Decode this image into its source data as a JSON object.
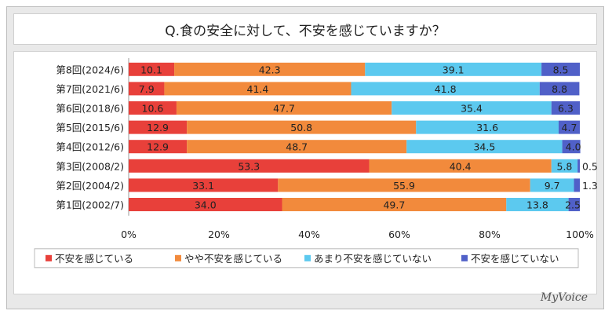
{
  "chart_data": {
    "type": "bar",
    "orientation": "horizontal",
    "stacked": true,
    "title": "Q.食の安全に対して、不安を感じていますか？",
    "categories": [
      "第8回(2024/6)",
      "第7回(2021/6)",
      "第6回(2018/6)",
      "第5回(2015/6)",
      "第4回(2012/6)",
      "第3回(2008/2)",
      "第2回(2004/2)",
      "第1回(2002/7)"
    ],
    "series": [
      {
        "name": "不安を感じている",
        "color": "#e8403a",
        "values": [
          10.1,
          7.9,
          10.6,
          12.9,
          12.9,
          53.3,
          33.1,
          34.0
        ],
        "labels": [
          "10.1",
          "7.9",
          "10.6",
          "12.9",
          "12.9",
          "53.3",
          "33.1",
          "34.0"
        ]
      },
      {
        "name": "やや不安を感じている",
        "color": "#f28a3c",
        "values": [
          42.3,
          41.4,
          47.7,
          50.8,
          48.7,
          40.4,
          55.9,
          49.7
        ],
        "labels": [
          "42.3",
          "41.4",
          "47.7",
          "50.8",
          "48.7",
          "40.4",
          "55.9",
          "49.7"
        ]
      },
      {
        "name": "あまり不安を感じていない",
        "color": "#5cc9ef",
        "values": [
          39.1,
          41.8,
          35.4,
          31.6,
          34.5,
          5.8,
          9.7,
          13.8
        ],
        "labels": [
          "39.1",
          "41.8",
          "35.4",
          "31.6",
          "34.5",
          "5.8",
          "9.7",
          "13.8"
        ]
      },
      {
        "name": "不安を感じていない",
        "color": "#5060c8",
        "values": [
          8.5,
          8.8,
          6.3,
          4.7,
          4.0,
          0.5,
          1.3,
          2.5
        ],
        "labels": [
          "8.5",
          "8.8",
          "6.3",
          "4.7",
          "4.0",
          "0.5",
          "1.3",
          "2.5"
        ]
      }
    ],
    "xlim": [
      0,
      100
    ],
    "x_ticks": [
      "0%",
      "20%",
      "40%",
      "60%",
      "80%",
      "100%"
    ],
    "grid": false,
    "legend_position": "bottom"
  },
  "brand": "MyVoice"
}
